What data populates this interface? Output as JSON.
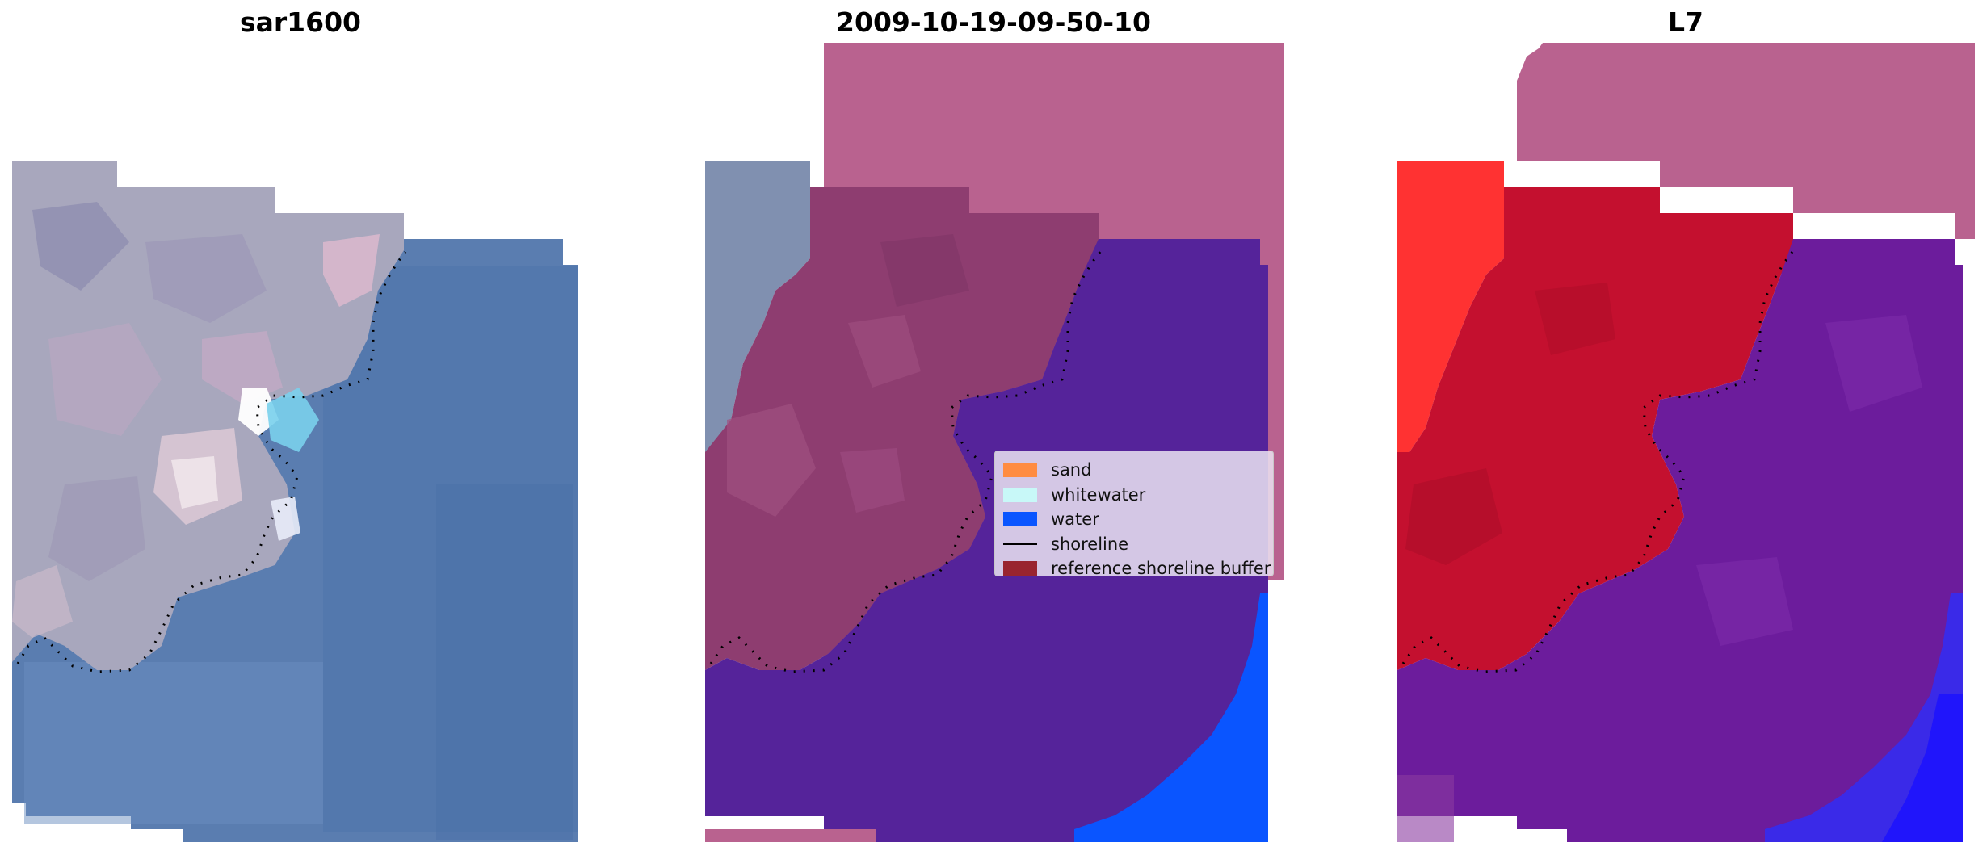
{
  "panels": [
    {
      "title": "sar1600"
    },
    {
      "title": "2009-10-19-09-50-10"
    },
    {
      "title": "L7"
    }
  ],
  "legend": {
    "items": [
      {
        "label": "sand",
        "kind": "patch",
        "color": "#ff8c42"
      },
      {
        "label": "whitewater",
        "kind": "patch",
        "color": "#c8f8f8"
      },
      {
        "label": "water",
        "kind": "patch",
        "color": "#0a55ff"
      },
      {
        "label": "shoreline",
        "kind": "line",
        "color": "#000000"
      },
      {
        "label": "reference shoreline buffer",
        "kind": "patch",
        "color": "#99242f"
      }
    ]
  },
  "colors": {
    "water_rgb": "#5577a8",
    "land_rgb": "#9a9ab0",
    "buffer_overlay": "#b9608f",
    "land_overlay": "#8b3a6a",
    "classified_water": "#55239a",
    "deep_water": "#0a55ff",
    "index_land": "#c0102e",
    "index_land_bright": "#ff3030",
    "index_water": "#6a1a9a",
    "index_deep": "#2a1aff"
  }
}
